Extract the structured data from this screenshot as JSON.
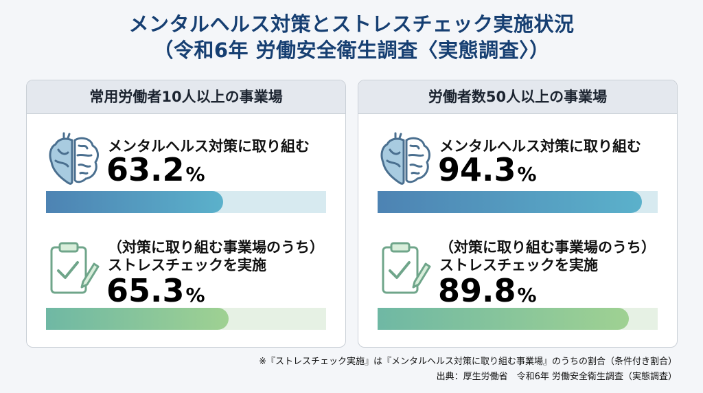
{
  "title": {
    "line1": "メンタルヘルス対策とストレスチェック実施状況",
    "line2": "（令和6年 労働安全衛生調査〈実態調査〉）"
  },
  "icons": [
    "heart-brain-icon",
    "clipboard-check-icon"
  ],
  "colors": {
    "title": "#163f72",
    "bar1_start": "#4d83b3",
    "bar1_end": "#5bb1cb",
    "bar1_track": "#d7eaf0",
    "bar2_start": "#6fb8a4",
    "bar2_end": "#9fd192",
    "bar2_track": "#e6f1e4"
  },
  "chart_data": [
    {
      "type": "bar",
      "title": "常用労働者10人以上の事業場",
      "unit": "%",
      "max": 100,
      "items": [
        {
          "label": "メンタルヘルス対策に取り組む",
          "label_prefix": "",
          "value": 63.2
        },
        {
          "label_prefix": "（対策に取り組む事業場のうち）",
          "label": "ストレスチェックを実施",
          "value": 65.3
        }
      ]
    },
    {
      "type": "bar",
      "title": "労働者数50人以上の事業場",
      "unit": "%",
      "max": 100,
      "items": [
        {
          "label": "メンタルヘルス対策に取り組む",
          "label_prefix": "",
          "value": 94.3
        },
        {
          "label_prefix": "（対策に取り組む事業場のうち）",
          "label": "ストレスチェックを実施",
          "value": 89.8
        }
      ]
    }
  ],
  "footnote": "※『ストレスチェック実施』は『メンタルヘルス対策に取り組む事業場』のうちの割合（条件付き割合）",
  "source": "出典：厚生労働省　令和6年 労働安全衛生調査（実態調査）"
}
